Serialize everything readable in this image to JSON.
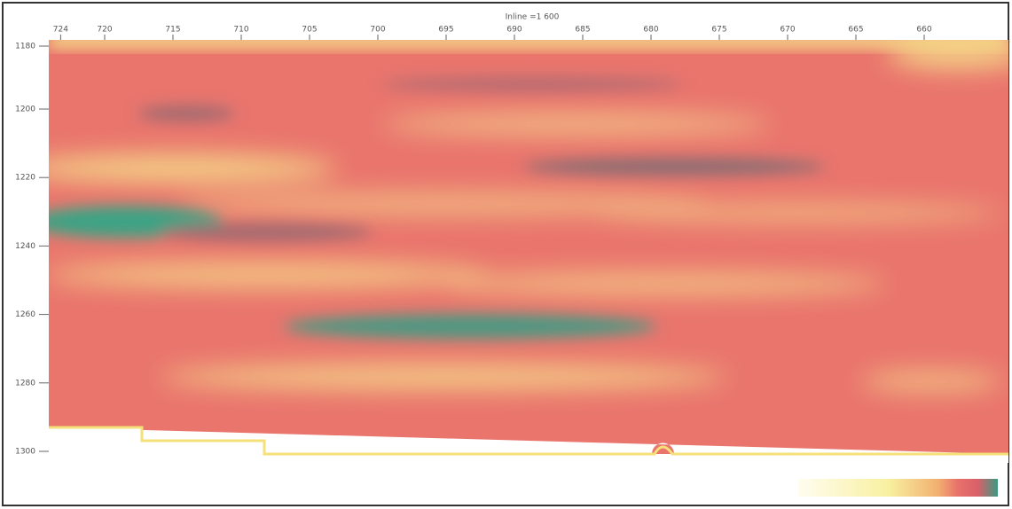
{
  "header": {
    "title": "Inline =1 600"
  },
  "x_axis": {
    "ticks": [
      724,
      720,
      715,
      710,
      705,
      700,
      695,
      690,
      685,
      680,
      675,
      670,
      665,
      660
    ]
  },
  "y_axis": {
    "ticks": [
      1180,
      1200,
      1220,
      1240,
      1260,
      1280,
      1300
    ]
  }
}
